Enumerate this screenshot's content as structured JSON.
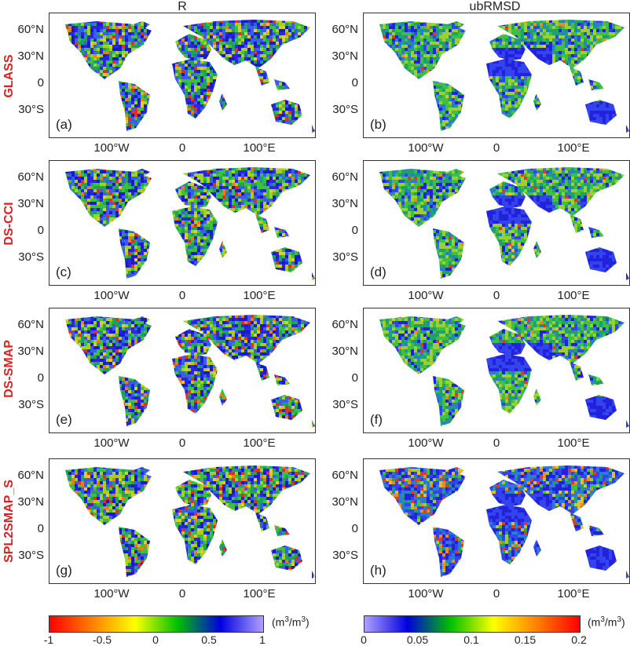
{
  "columns": {
    "left": "R",
    "right": "ubRMSD"
  },
  "rows": [
    {
      "label": "GLASS",
      "left_tag": "(a)",
      "right_tag": "(b)"
    },
    {
      "label": "DS-CCI",
      "left_tag": "(c)",
      "right_tag": "(d)"
    },
    {
      "label": "DS-SMAP",
      "left_tag": "(e)",
      "right_tag": "(f)"
    },
    {
      "label": "SPL2SMAP_S",
      "left_tag": "(g)",
      "right_tag": "(h)"
    }
  ],
  "lat_labels_full": [
    "60°N",
    "30°N",
    "0",
    "30°S"
  ],
  "lon_labels": [
    "100°W",
    "0",
    "100°E"
  ],
  "colorbar_R": {
    "ticks": [
      "-1",
      "-0.5",
      "0",
      "0.5",
      "1"
    ],
    "colors": [
      "#ff0000",
      "#ff8000",
      "#ffff00",
      "#00c000",
      "#0000e0",
      "#b0a0ff"
    ]
  },
  "colorbar_ub": {
    "ticks": [
      "0",
      "0.05",
      "0.1",
      "0.15",
      "0.2"
    ],
    "colors": [
      "#b0a0ff",
      "#0000e0",
      "#00c000",
      "#ffff00",
      "#ff8000",
      "#ff0000"
    ]
  },
  "unit": {
    "base": "(m",
    "exp": "3",
    "mid": "/m",
    "exp2": "3",
    "end": ")"
  }
}
